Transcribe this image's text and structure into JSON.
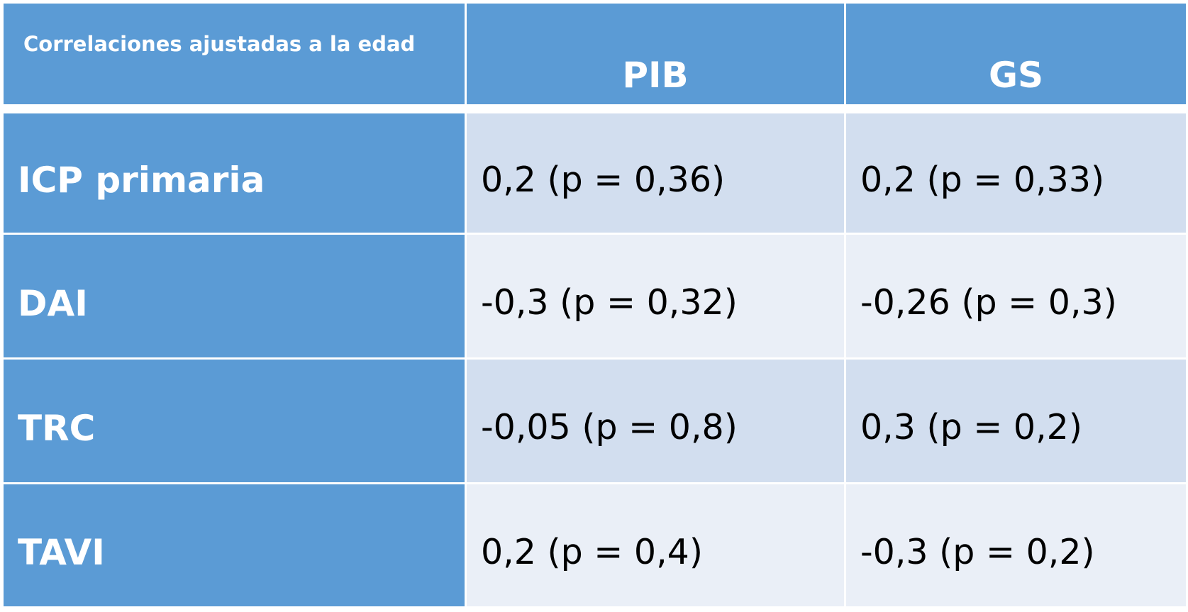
{
  "table": {
    "header": [
      "Correlaciones ajustadas a la edad",
      "PIB",
      "GS"
    ],
    "rows": [
      [
        "ICP primaria",
        "0,2 (p = 0,36)",
        "0,2 (p = 0,33)"
      ],
      [
        "DAI",
        "-0,3 (p = 0,32)",
        "-0,26 (p = 0,3)"
      ],
      [
        "TRC",
        "-0,05 (p = 0,8)",
        "0,3 (p = 0,2)"
      ],
      [
        "TAVI",
        "0,2 (p = 0,4)",
        "-0,3 (p = 0,2)"
      ]
    ]
  }
}
